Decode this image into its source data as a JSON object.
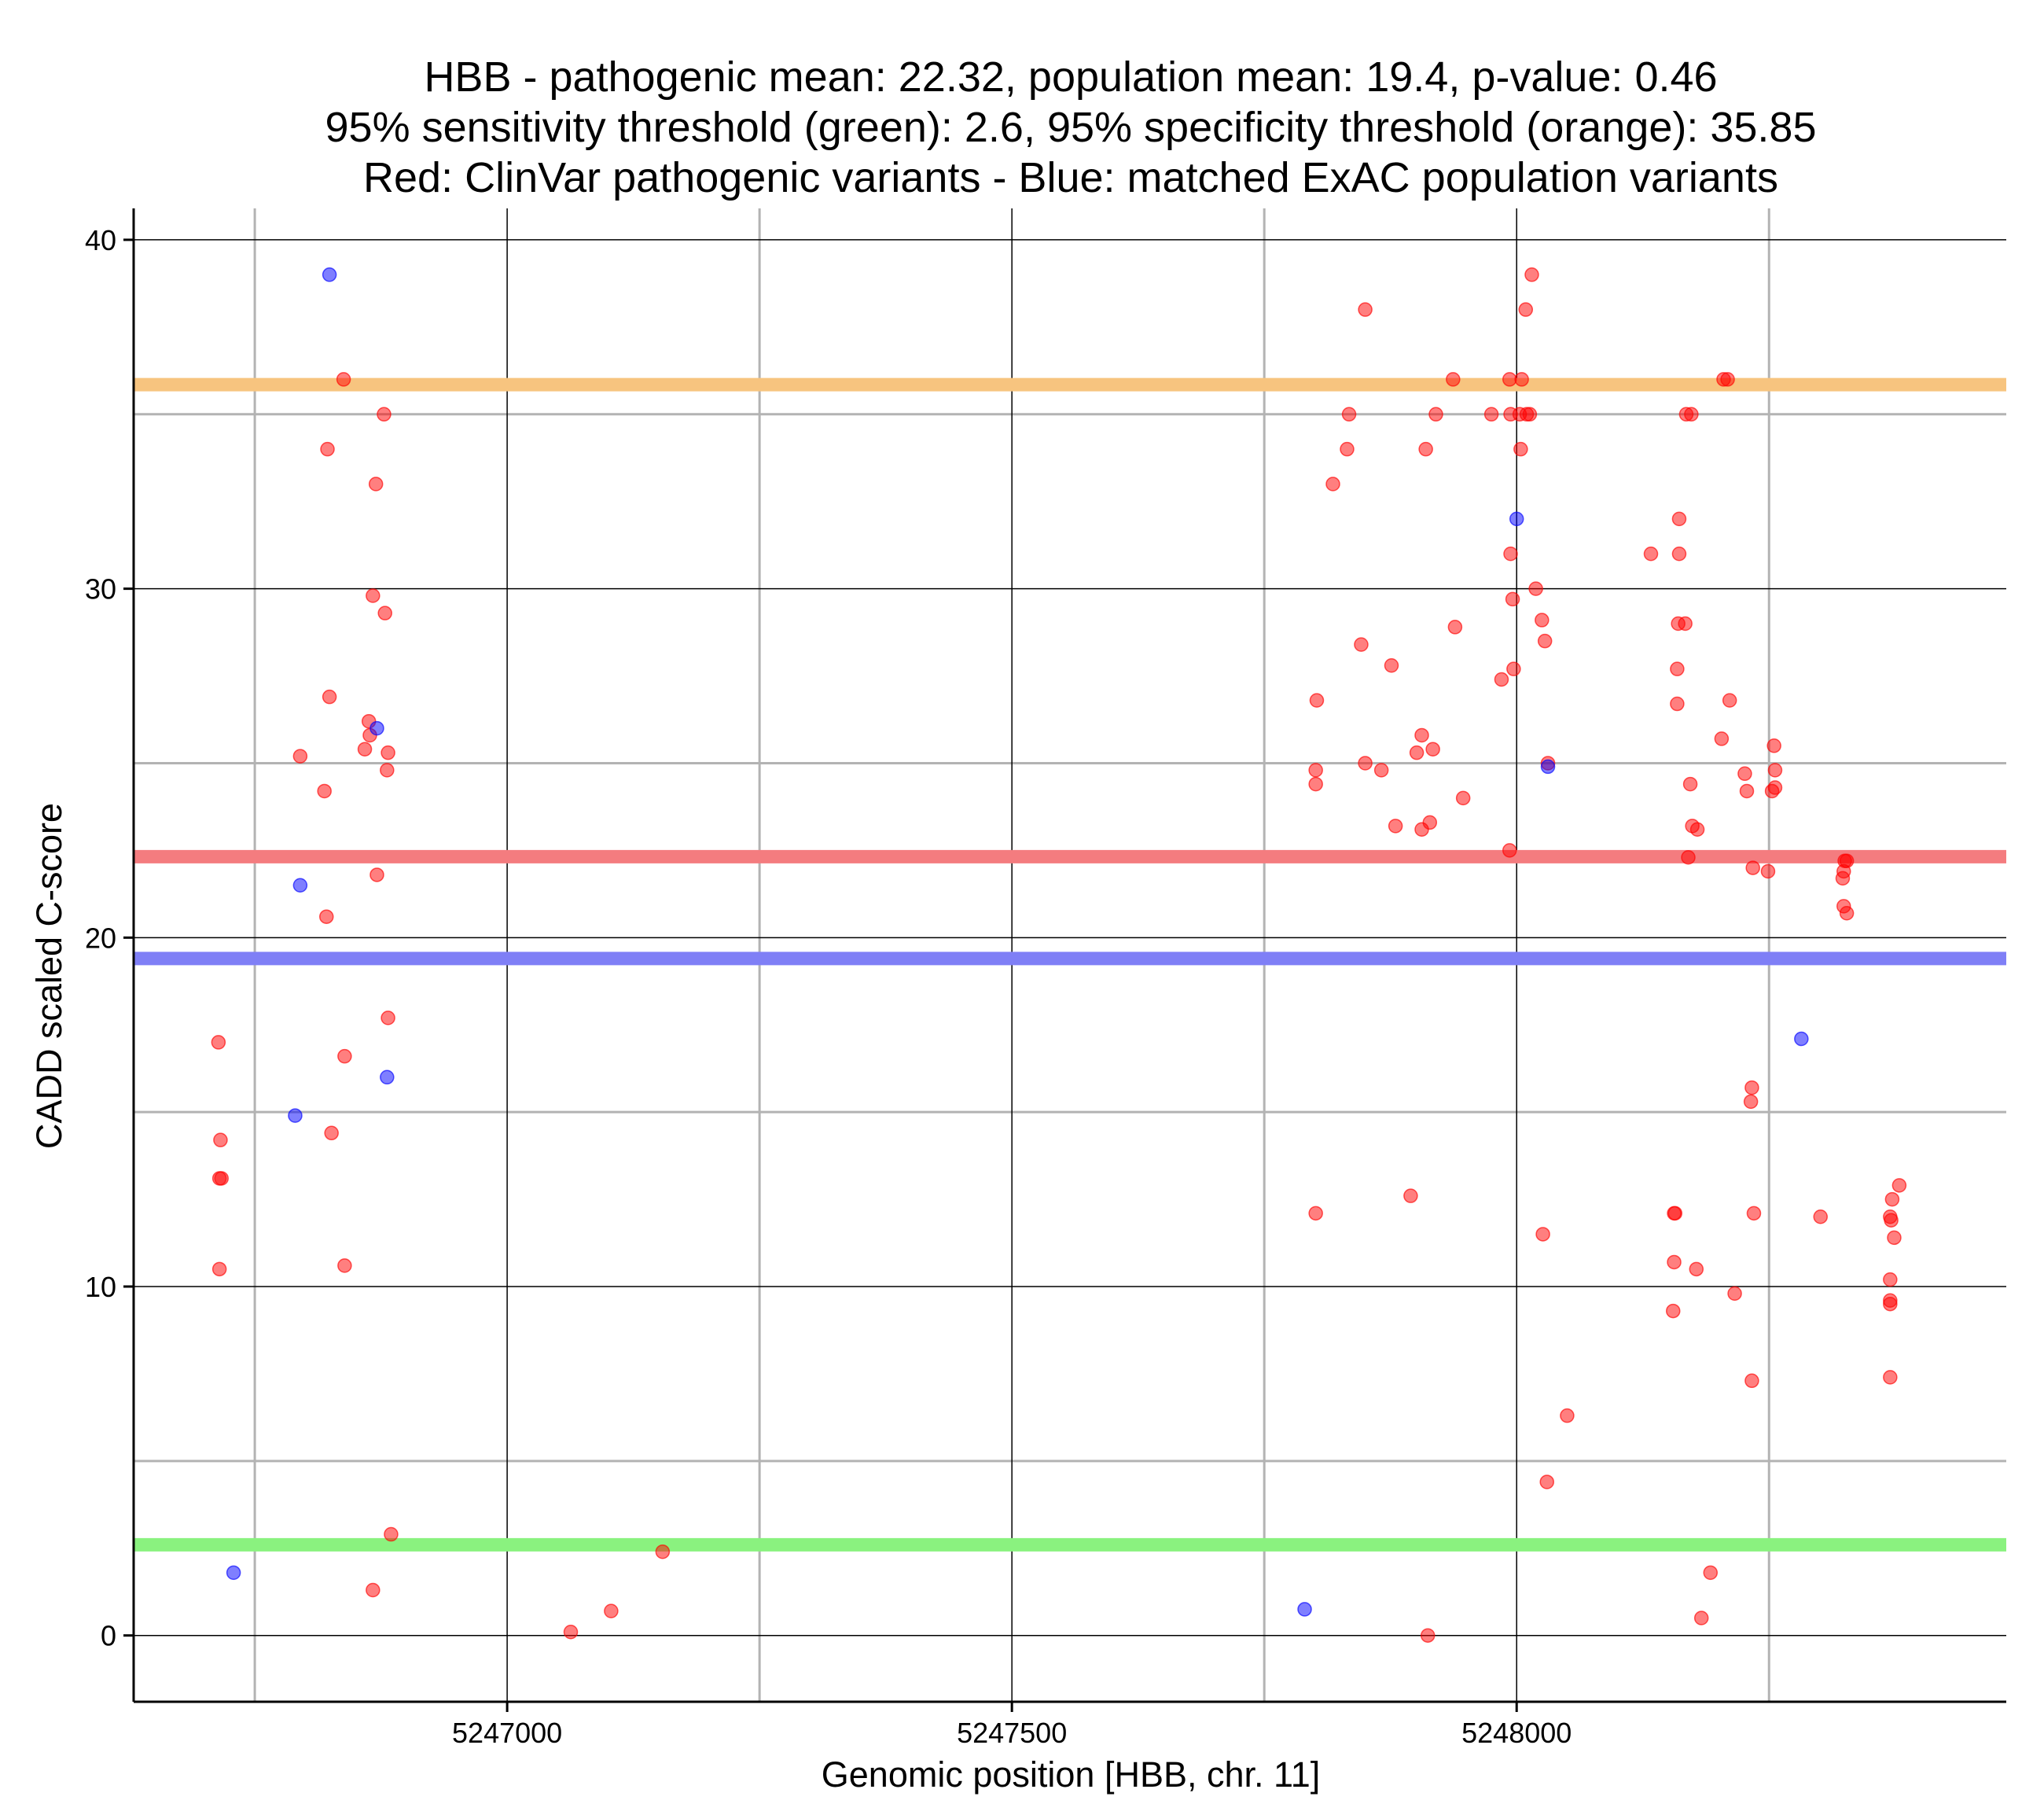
{
  "chart_data": {
    "type": "scatter",
    "title": [
      "HBB - pathogenic mean: 22.32, population mean: 19.4, p-value: 0.46",
      "95% sensitivity threshold (green): 2.6, 95% specificity threshold (orange): 35.85",
      "Red: ClinVar pathogenic variants - Blue: matched ExAC population variants"
    ],
    "xlabel": "Genomic position [HBB, chr. 11]",
    "ylabel": "CADD scaled C-score",
    "xlim": [
      5246630,
      5248485
    ],
    "ylim": [
      -1.9,
      40.9
    ],
    "x_ticks": [
      5247000,
      5247500,
      5248000
    ],
    "x_tick_labels": [
      "5247000",
      "5247500",
      "5248000"
    ],
    "x_minor_gridlines": [
      5246750,
      5247250,
      5247750,
      5248250
    ],
    "y_ticks": [
      0,
      10,
      20,
      30,
      40
    ],
    "y_tick_labels": [
      "0",
      "10",
      "20",
      "30",
      "40"
    ],
    "y_minor_gridlines": [
      5,
      15,
      25,
      35
    ],
    "reference_lines": [
      {
        "name": "specificity-threshold",
        "value": 35.85,
        "color": "#F7C47F"
      },
      {
        "name": "pathogenic-mean",
        "value": 22.32,
        "color": "#F47C7F"
      },
      {
        "name": "population-mean",
        "value": 19.4,
        "color": "#7F7FF6"
      },
      {
        "name": "sensitivity-threshold",
        "value": 2.6,
        "color": "#8AF27F"
      }
    ],
    "series": [
      {
        "name": "ClinVar pathogenic variants",
        "color": "#FF0000",
        "points": [
          [
            5246714,
            17.0
          ],
          [
            5246716,
            14.2
          ],
          [
            5246715,
            13.1
          ],
          [
            5246717,
            13.1
          ],
          [
            5246715,
            10.5
          ],
          [
            5246838,
            36.0
          ],
          [
            5246822,
            34.0
          ],
          [
            5246878,
            35.0
          ],
          [
            5246870,
            33.0
          ],
          [
            5246867,
            29.8
          ],
          [
            5246879,
            29.3
          ],
          [
            5246824,
            26.9
          ],
          [
            5246863,
            26.2
          ],
          [
            5246864,
            25.8
          ],
          [
            5246859,
            25.4
          ],
          [
            5246882,
            25.3
          ],
          [
            5246881,
            24.8
          ],
          [
            5246795,
            25.2
          ],
          [
            5246819,
            24.2
          ],
          [
            5246871,
            21.8
          ],
          [
            5246821,
            20.6
          ],
          [
            5246882,
            17.7
          ],
          [
            5246839,
            16.6
          ],
          [
            5246826,
            14.4
          ],
          [
            5246839,
            10.6
          ],
          [
            5246885,
            2.9
          ],
          [
            5246867,
            1.3
          ],
          [
            5247063,
            0.1
          ],
          [
            5247103,
            0.7
          ],
          [
            5247154,
            2.4
          ],
          [
            5247850,
            38.0
          ],
          [
            5247834,
            35.0
          ],
          [
            5247832,
            34.0
          ],
          [
            5247818,
            33.0
          ],
          [
            5247802,
            26.8
          ],
          [
            5247801,
            24.8
          ],
          [
            5247801,
            24.4
          ],
          [
            5247846,
            28.4
          ],
          [
            5247876,
            27.8
          ],
          [
            5247850,
            25.0
          ],
          [
            5247866,
            24.8
          ],
          [
            5247880,
            23.2
          ],
          [
            5247801,
            12.1
          ],
          [
            5247895,
            12.6
          ],
          [
            5247937,
            36.0
          ],
          [
            5247920,
            35.0
          ],
          [
            5247910,
            34.0
          ],
          [
            5247939,
            28.9
          ],
          [
            5247906,
            25.8
          ],
          [
            5247901,
            25.3
          ],
          [
            5247917,
            25.4
          ],
          [
            5247947,
            24.0
          ],
          [
            5247914,
            23.3
          ],
          [
            5247906,
            23.1
          ],
          [
            5247912,
            0.0
          ],
          [
            5248015,
            39.0
          ],
          [
            5248009,
            38.0
          ],
          [
            5247993,
            36.0
          ],
          [
            5248005,
            36.0
          ],
          [
            5247975,
            35.0
          ],
          [
            5247994,
            35.0
          ],
          [
            5248003,
            35.0
          ],
          [
            5248010,
            35.0
          ],
          [
            5248013,
            35.0
          ],
          [
            5248004,
            34.0
          ],
          [
            5247994,
            31.0
          ],
          [
            5248019,
            30.0
          ],
          [
            5247996,
            29.7
          ],
          [
            5248025,
            29.1
          ],
          [
            5248028,
            28.5
          ],
          [
            5247985,
            27.4
          ],
          [
            5247997,
            27.7
          ],
          [
            5248031,
            25.0
          ],
          [
            5247993,
            22.5
          ],
          [
            5248026,
            11.5
          ],
          [
            5248050,
            6.3
          ],
          [
            5248030,
            4.4
          ],
          [
            5248133,
            31.0
          ],
          [
            5248161,
            32.0
          ],
          [
            5248161,
            31.0
          ],
          [
            5248160,
            29.0
          ],
          [
            5248167,
            29.0
          ],
          [
            5248159,
            27.7
          ],
          [
            5248159,
            26.7
          ],
          [
            5248205,
            36.0
          ],
          [
            5248209,
            36.0
          ],
          [
            5248168,
            35.0
          ],
          [
            5248173,
            35.0
          ],
          [
            5248211,
            26.8
          ],
          [
            5248203,
            25.7
          ],
          [
            5248172,
            24.4
          ],
          [
            5248174,
            23.2
          ],
          [
            5248179,
            23.1
          ],
          [
            5248170,
            22.3
          ],
          [
            5248156,
            12.1
          ],
          [
            5248157,
            12.1
          ],
          [
            5248156,
            10.7
          ],
          [
            5248178,
            10.5
          ],
          [
            5248216,
            9.8
          ],
          [
            5248155,
            9.3
          ],
          [
            5248192,
            1.8
          ],
          [
            5248183,
            0.5
          ],
          [
            5248255,
            25.5
          ],
          [
            5248256,
            24.8
          ],
          [
            5248226,
            24.7
          ],
          [
            5248253,
            24.2
          ],
          [
            5248256,
            24.3
          ],
          [
            5248228,
            24.2
          ],
          [
            5248234,
            22.0
          ],
          [
            5248249,
            21.9
          ],
          [
            5248233,
            15.7
          ],
          [
            5248232,
            15.3
          ],
          [
            5248235,
            12.1
          ],
          [
            5248233,
            7.3
          ],
          [
            5248325,
            22.2
          ],
          [
            5248327,
            22.2
          ],
          [
            5248324,
            21.9
          ],
          [
            5248323,
            21.7
          ],
          [
            5248324,
            20.9
          ],
          [
            5248327,
            20.7
          ],
          [
            5248301,
            12.0
          ],
          [
            5248379,
            12.9
          ],
          [
            5248372,
            12.5
          ],
          [
            5248370,
            12.0
          ],
          [
            5248371,
            11.9
          ],
          [
            5248374,
            11.4
          ],
          [
            5248370,
            10.2
          ],
          [
            5248370,
            9.6
          ],
          [
            5248370,
            9.5
          ],
          [
            5248370,
            7.4
          ]
        ]
      },
      {
        "name": "matched ExAC population variants",
        "color": "#0000FF",
        "points": [
          [
            5246824,
            39.0
          ],
          [
            5246871,
            26.0
          ],
          [
            5246795,
            21.5
          ],
          [
            5246881,
            16.0
          ],
          [
            5246790,
            14.9
          ],
          [
            5246729,
            1.8
          ],
          [
            5248000,
            32.0
          ],
          [
            5248031,
            24.9
          ],
          [
            5248282,
            17.1
          ],
          [
            5247790,
            0.75
          ]
        ]
      }
    ]
  }
}
